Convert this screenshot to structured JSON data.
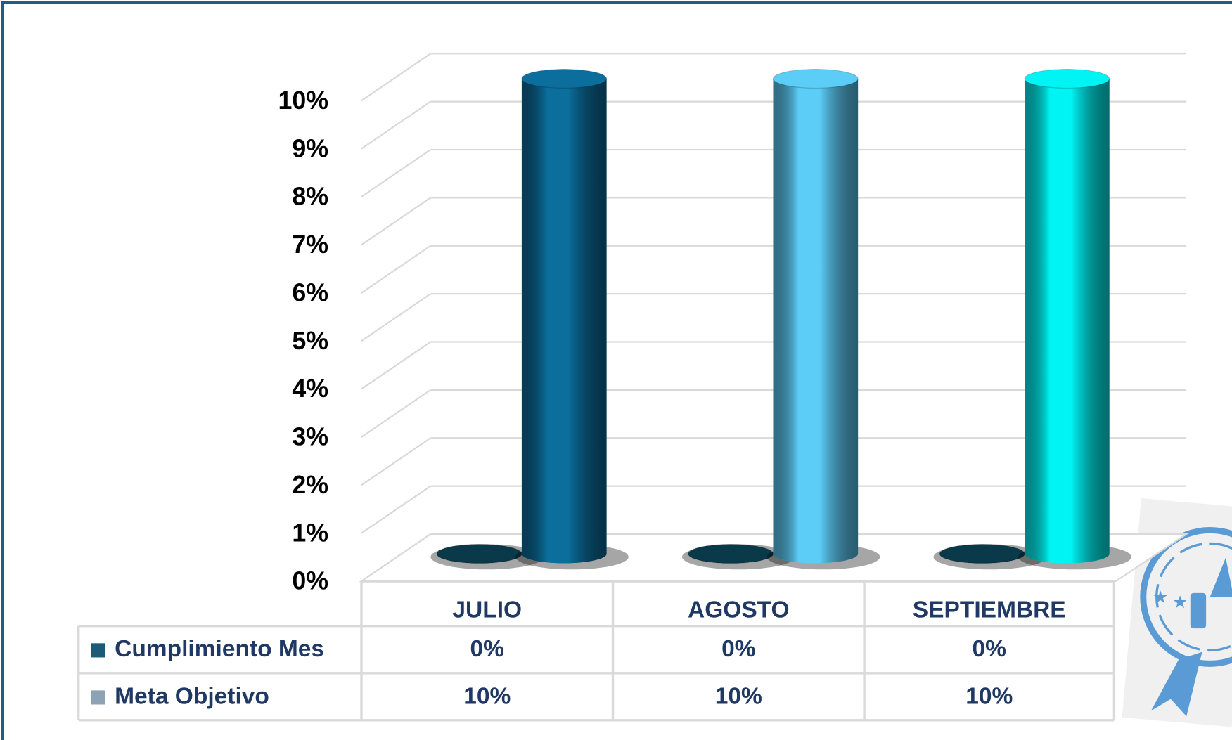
{
  "chart_data": {
    "type": "bar",
    "categories": [
      "JULIO",
      "AGOSTO",
      "SEPTIEMBRE"
    ],
    "series": [
      {
        "name": "Cumplimiento Mes",
        "color": "#1b5b78",
        "colors": [
          "#0a3a4a",
          "#0a3a4a",
          "#0a3a4a"
        ],
        "values": [
          0,
          0,
          0
        ],
        "value_labels": [
          "0%",
          "0%",
          "0%"
        ]
      },
      {
        "name": "Meta Objetivo",
        "color": "#8da2b4",
        "colors": [
          "#0b6e9c",
          "#5ccdf7",
          "#00f4f4"
        ],
        "values": [
          10,
          10,
          10
        ],
        "value_labels": [
          "10%",
          "10%",
          "10%"
        ]
      }
    ],
    "ylim": [
      0,
      10
    ],
    "yticks": [
      {
        "value": 0,
        "label": "0%"
      },
      {
        "value": 1,
        "label": "1%"
      },
      {
        "value": 2,
        "label": "2%"
      },
      {
        "value": 3,
        "label": "3%"
      },
      {
        "value": 4,
        "label": "4%"
      },
      {
        "value": 5,
        "label": "5%"
      },
      {
        "value": 6,
        "label": "6%"
      },
      {
        "value": 7,
        "label": "7%"
      },
      {
        "value": 8,
        "label": "8%"
      },
      {
        "value": 9,
        "label": "9%"
      },
      {
        "value": 10,
        "label": "10%"
      }
    ],
    "grid": true,
    "data_table": true
  }
}
